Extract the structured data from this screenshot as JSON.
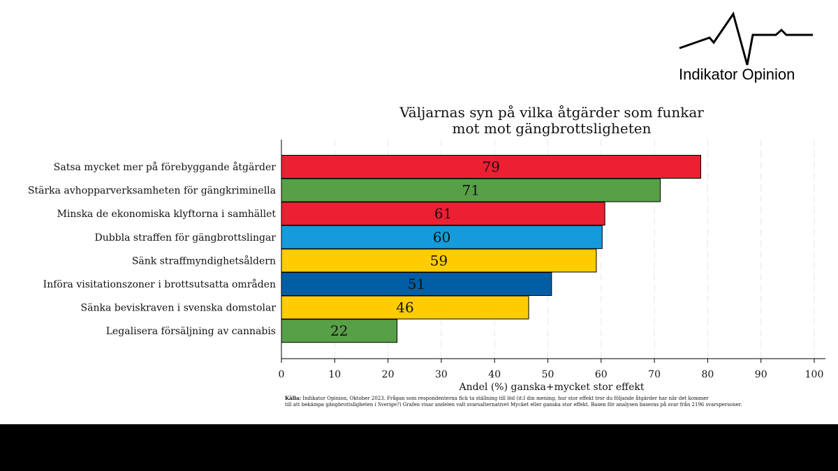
{
  "brand": {
    "name": "Indikator Opinion"
  },
  "chart_data": {
    "type": "bar",
    "orientation": "horizontal",
    "title_lines": [
      "Väljarnas syn på vilka åtgärder som funkar",
      "mot mot gängbrottsligheten"
    ],
    "xlabel": "Andel (%) ganska+mycket stor effekt",
    "ylabel": "",
    "xlim": [
      0,
      100
    ],
    "xticks": [
      0,
      10,
      20,
      30,
      40,
      50,
      60,
      70,
      80,
      90,
      100
    ],
    "grid": "vertical dashed",
    "categories": [
      "Satsa mycket mer på förebyggande åtgärder",
      "Stärka avhopparverksamheten för gängkriminella",
      "Minska de ekonomiska klyftorna i samhället",
      "Dubbla straffen för gängbrottslingar",
      "Sänk straffmyndighetsåldern",
      "Införa visitationszoner i brottsutsatta områden",
      "Sänka beviskraven i svenska domstolar",
      "Legalisera försäljning av cannabis"
    ],
    "values": [
      78.7,
      71.1,
      60.7,
      60.2,
      59.1,
      50.7,
      46.4,
      21.7
    ],
    "data_labels": [
      "79",
      "71",
      "61",
      "60",
      "59",
      "51",
      "46",
      "22"
    ],
    "colors": [
      "#ec1f33",
      "#57a047",
      "#ec1f33",
      "#149bdb",
      "#ffcc00",
      "#015ea4",
      "#ffcc00",
      "#57a047"
    ]
  },
  "source": {
    "label": "Källa:",
    "line1": " Indikator Opinion, Oktober 2023. Frågan som respondenterna fick ta ställning till löd (it:I din mening, hur stor effekt tror du följande åtgärder har när det kommer",
    "line2": "till att bekämpa gängbrottsligheten i Sverige?) Grafen visar andelen valt svarsalternativet Mycket eller ganska stor effekt. Basen för analysen baseras på svar från 2196 svarspersoner."
  }
}
